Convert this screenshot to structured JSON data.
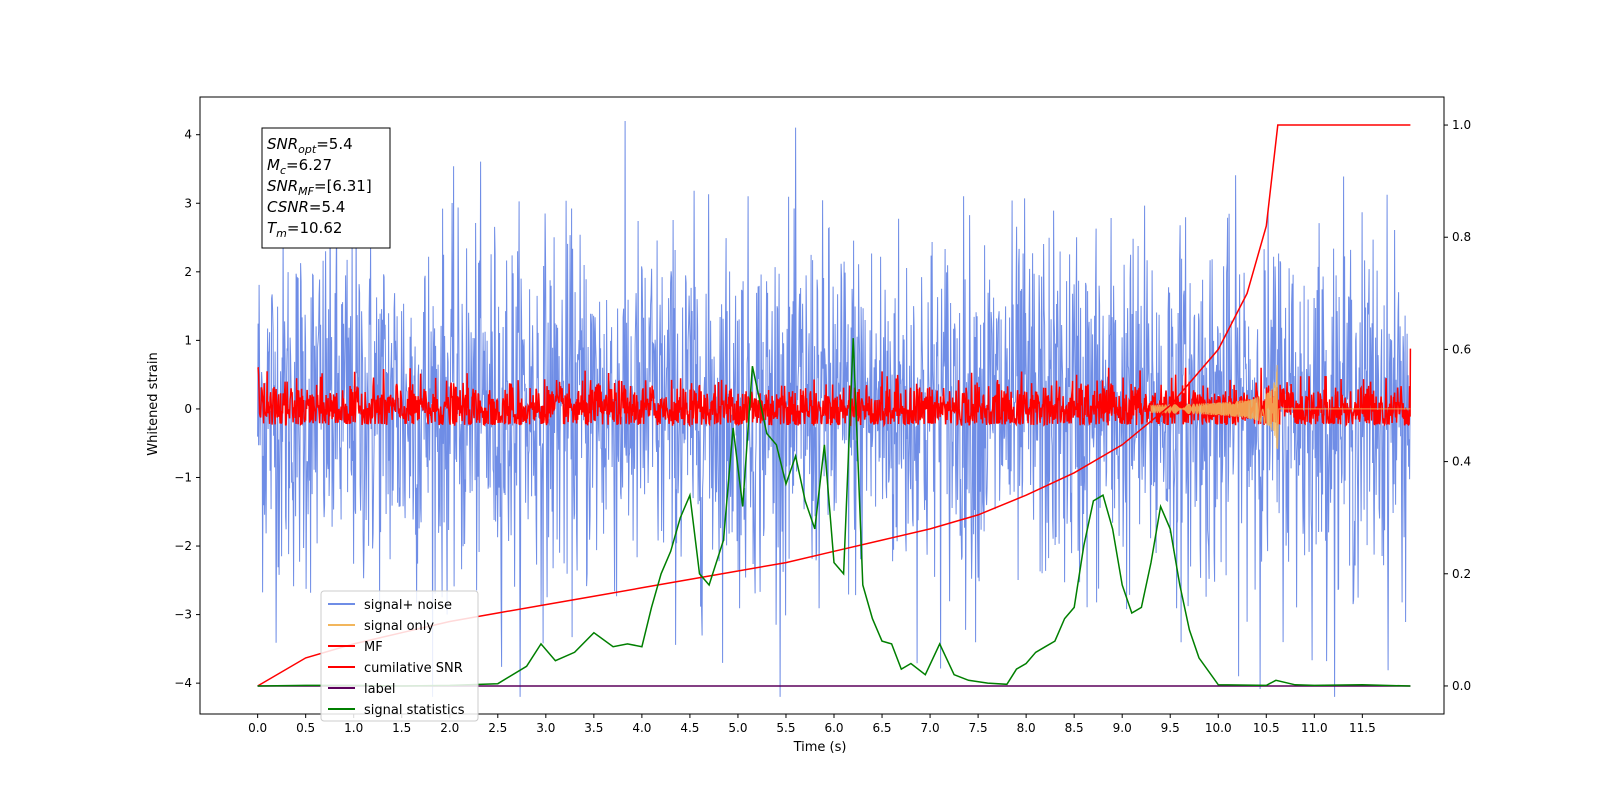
{
  "chart_data": {
    "type": "line",
    "xlabel": "Time (s)",
    "ylabel": "Whitened strain",
    "xlim": [
      -0.6,
      12.35
    ],
    "ylim": [
      -4.45,
      4.55
    ],
    "y2lim": [
      -0.05,
      1.05
    ],
    "xticks": [
      "0.0",
      "0.5",
      "1.0",
      "1.5",
      "2.0",
      "2.5",
      "3.0",
      "3.5",
      "4.0",
      "4.5",
      "5.0",
      "5.5",
      "6.0",
      "6.5",
      "7.0",
      "7.5",
      "8.0",
      "8.5",
      "9.0",
      "9.5",
      "10.0",
      "10.5",
      "11.0",
      "11.5"
    ],
    "yticks": [
      "−4",
      "−3",
      "−2",
      "−1",
      "0",
      "1",
      "2",
      "3",
      "4"
    ],
    "y2ticks": [
      "0.0",
      "0.2",
      "0.4",
      "0.6",
      "0.8",
      "1.0"
    ],
    "legend_position": "lower-left",
    "annotation": {
      "lines": [
        {
          "main": "SNR",
          "sub": "opt",
          "rest": "=5.4"
        },
        {
          "main": "M",
          "sub": "c",
          "rest": "=6.27"
        },
        {
          "main": "SNR",
          "sub": "MF",
          "rest": "=[6.31]"
        },
        {
          "main": "CSNR",
          "sub": "",
          "rest": "=5.4"
        },
        {
          "main": "T",
          "sub": "m",
          "rest": "=10.62"
        }
      ]
    },
    "series": [
      {
        "name": "signal+ noise",
        "color": "#6f8de6",
        "axis": "left",
        "kind": "noise",
        "amplitude": 1.3,
        "x_range": [
          0,
          12.0
        ]
      },
      {
        "name": "signal only",
        "color": "#f2b65c",
        "axis": "left",
        "kind": "chirp",
        "merger_time": 10.62,
        "peak": 0.75
      },
      {
        "name": "MF",
        "color": "#ff0000",
        "axis": "left",
        "kind": "noise",
        "amplitude": 0.2,
        "x_range": [
          0,
          12.0
        ]
      },
      {
        "name": "cumilative SNR",
        "color": "#ff0000",
        "axis": "right",
        "x": [
          0.0,
          0.5,
          1.0,
          1.5,
          2.0,
          2.5,
          3.0,
          3.5,
          4.0,
          4.5,
          5.0,
          5.5,
          6.0,
          6.5,
          7.0,
          7.5,
          8.0,
          8.5,
          9.0,
          9.5,
          10.0,
          10.3,
          10.5,
          10.62,
          11.0,
          12.0
        ],
        "y": [
          0.0,
          0.05,
          0.075,
          0.095,
          0.115,
          0.13,
          0.145,
          0.16,
          0.175,
          0.19,
          0.205,
          0.22,
          0.24,
          0.26,
          0.28,
          0.305,
          0.34,
          0.38,
          0.43,
          0.5,
          0.6,
          0.7,
          0.82,
          1.0,
          1.0,
          1.0
        ]
      },
      {
        "name": "label",
        "color": "#5b005b",
        "axis": "right",
        "x": [
          0.0,
          12.0
        ],
        "y": [
          0.0,
          0.0
        ]
      },
      {
        "name": "signal statistics",
        "color": "#007f00",
        "axis": "right",
        "x": [
          0.0,
          0.5,
          1.0,
          1.5,
          2.0,
          2.5,
          2.8,
          2.95,
          3.1,
          3.3,
          3.5,
          3.7,
          3.85,
          4.0,
          4.1,
          4.2,
          4.3,
          4.4,
          4.5,
          4.6,
          4.7,
          4.85,
          4.95,
          5.05,
          5.15,
          5.3,
          5.4,
          5.5,
          5.6,
          5.7,
          5.8,
          5.9,
          6.0,
          6.1,
          6.2,
          6.3,
          6.4,
          6.5,
          6.6,
          6.7,
          6.8,
          6.95,
          7.1,
          7.25,
          7.4,
          7.6,
          7.8,
          7.9,
          8.0,
          8.1,
          8.2,
          8.3,
          8.4,
          8.5,
          8.6,
          8.7,
          8.8,
          8.9,
          9.0,
          9.1,
          9.2,
          9.3,
          9.4,
          9.5,
          9.6,
          9.7,
          9.8,
          10.0,
          10.5,
          10.6,
          10.8,
          11.0,
          11.5,
          12.0
        ],
        "y": [
          0.0,
          0.001,
          0.001,
          0.0,
          0.001,
          0.004,
          0.035,
          0.075,
          0.045,
          0.06,
          0.095,
          0.07,
          0.075,
          0.07,
          0.14,
          0.2,
          0.24,
          0.3,
          0.34,
          0.2,
          0.18,
          0.26,
          0.46,
          0.32,
          0.57,
          0.45,
          0.43,
          0.36,
          0.41,
          0.33,
          0.28,
          0.43,
          0.22,
          0.2,
          0.62,
          0.18,
          0.12,
          0.08,
          0.075,
          0.03,
          0.04,
          0.02,
          0.075,
          0.02,
          0.01,
          0.005,
          0.003,
          0.03,
          0.04,
          0.06,
          0.07,
          0.08,
          0.12,
          0.14,
          0.25,
          0.33,
          0.34,
          0.28,
          0.18,
          0.13,
          0.14,
          0.22,
          0.32,
          0.28,
          0.18,
          0.1,
          0.05,
          0.002,
          0.001,
          0.01,
          0.002,
          0.001,
          0.002,
          0.0
        ]
      }
    ]
  }
}
